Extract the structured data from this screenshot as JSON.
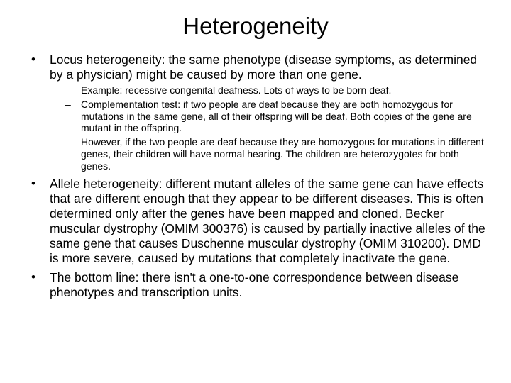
{
  "title": "Heterogeneity",
  "bullets": [
    {
      "term": "Locus heterogeneity",
      "text": ": the same phenotype (disease symptoms, as determined by a physician) might be caused by more than one gene.",
      "sub": [
        {
          "prefix": "Example: recessive congenital deafness.  Lots of ways to be born deaf."
        },
        {
          "term": "Complementation test",
          "text": ": if two people are deaf because they are both homozygous for mutations in the same gene, all of their offspring will be deaf.  Both copies of the gene are mutant in the offspring."
        },
        {
          "prefix": "However, if the two people are deaf because they are homozygous for mutations in different genes, their children will have normal hearing.  The children are heterozygotes for both genes."
        }
      ]
    },
    {
      "term": "Allele heterogeneity",
      "text": ": different mutant alleles of the same gene can have effects that are different enough that they appear to be different diseases.  This is often determined only after the genes have been mapped and cloned.  Becker muscular dystrophy (OMIM 300376) is caused by partially inactive alleles of the same gene that causes Duschenne muscular dystrophy (OMIM 310200).  DMD is more severe, caused by mutations that completely inactivate the gene."
    },
    {
      "text": "The bottom line: there isn't a one-to-one correspondence between disease phenotypes and transcription units."
    }
  ]
}
